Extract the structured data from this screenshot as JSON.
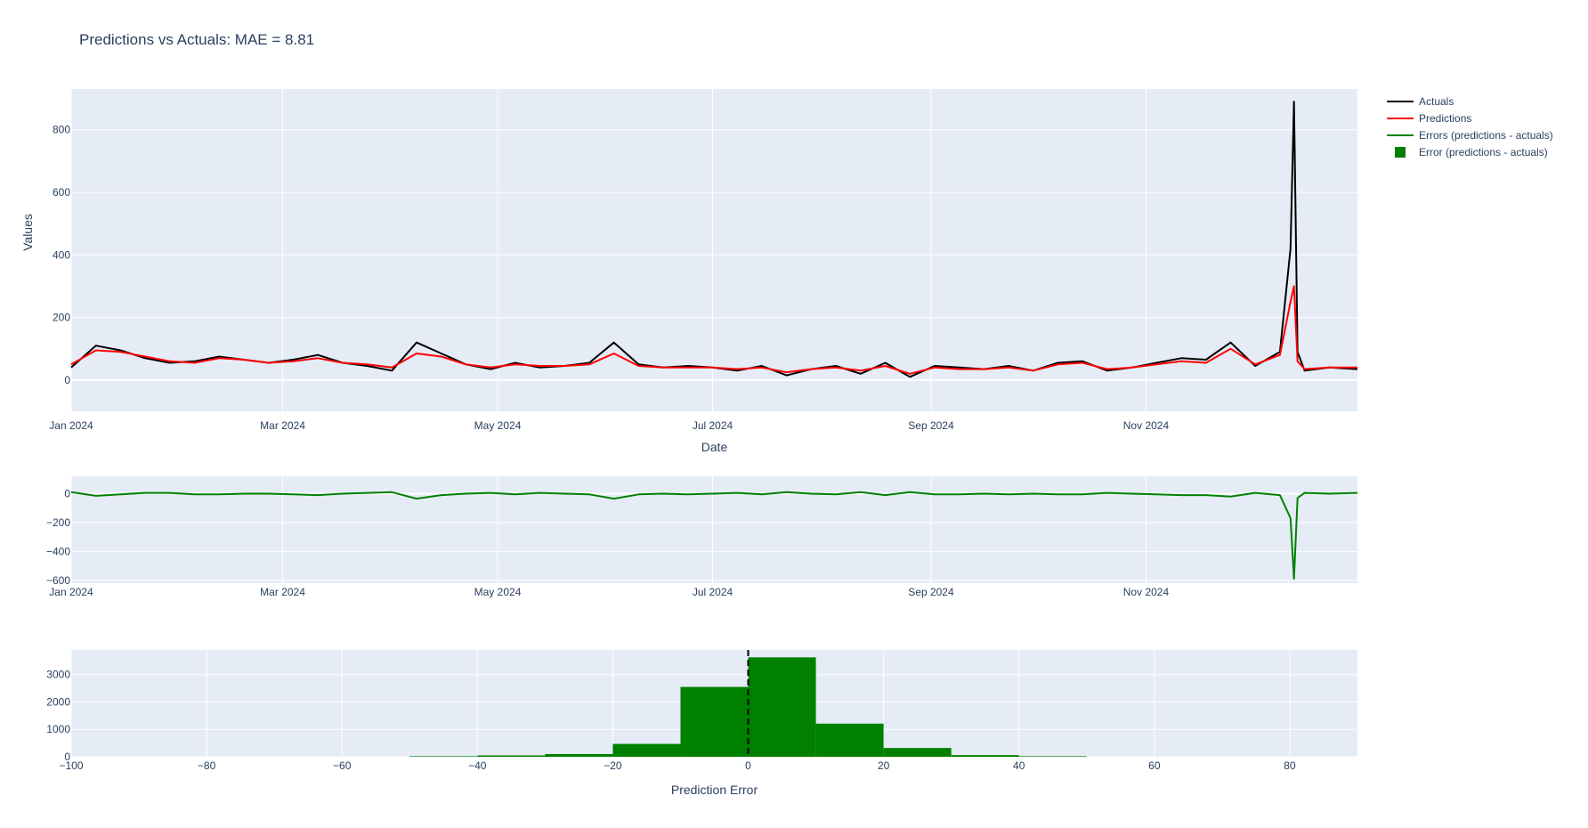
{
  "title": "Predictions vs Actuals: MAE = 8.81",
  "colors": {
    "plot_bg": "#e5ecf6",
    "grid": "#ffffff",
    "actuals": "#000000",
    "predictions": "#ff0000",
    "errors": "#008000",
    "histogram": "#008000",
    "text": "#2a3f5f"
  },
  "legend": {
    "placement": "right",
    "items": [
      {
        "label": "Actuals",
        "symbol": "line",
        "color": "#000000"
      },
      {
        "label": "Predictions",
        "symbol": "line",
        "color": "#ff0000"
      },
      {
        "label": "Errors (predictions - actuals)",
        "symbol": "line",
        "color": "#008000"
      },
      {
        "label": "Error (predictions - actuals)",
        "symbol": "square",
        "color": "#008000"
      }
    ]
  },
  "chart_data": [
    {
      "type": "line",
      "xlabel": "Date",
      "ylabel": "Values",
      "xlim": [
        "2024-01-01",
        "2024-12-31"
      ],
      "ylim": [
        -100,
        930
      ],
      "yticks": [
        0,
        200,
        400,
        600,
        800
      ],
      "xticks": [
        {
          "date": "2024-01-01",
          "label": "Jan 2024"
        },
        {
          "date": "2024-03-01",
          "label": "Mar 2024"
        },
        {
          "date": "2024-05-01",
          "label": "May 2024"
        },
        {
          "date": "2024-07-01",
          "label": "Jul 2024"
        },
        {
          "date": "2024-09-01",
          "label": "Sep 2024"
        },
        {
          "date": "2024-11-01",
          "label": "Nov 2024"
        }
      ],
      "grid": true,
      "series": [
        {
          "name": "Actuals",
          "color": "#000000",
          "x": [
            "2024-01-01",
            "2024-01-08",
            "2024-01-15",
            "2024-01-22",
            "2024-01-29",
            "2024-02-05",
            "2024-02-12",
            "2024-02-19",
            "2024-02-26",
            "2024-03-04",
            "2024-03-11",
            "2024-03-18",
            "2024-03-25",
            "2024-04-01",
            "2024-04-08",
            "2024-04-15",
            "2024-04-22",
            "2024-04-29",
            "2024-05-06",
            "2024-05-13",
            "2024-05-20",
            "2024-05-27",
            "2024-06-03",
            "2024-06-10",
            "2024-06-17",
            "2024-06-24",
            "2024-07-01",
            "2024-07-08",
            "2024-07-15",
            "2024-07-22",
            "2024-07-29",
            "2024-08-05",
            "2024-08-12",
            "2024-08-19",
            "2024-08-26",
            "2024-09-02",
            "2024-09-09",
            "2024-09-16",
            "2024-09-23",
            "2024-09-30",
            "2024-10-07",
            "2024-10-14",
            "2024-10-21",
            "2024-10-28",
            "2024-11-04",
            "2024-11-11",
            "2024-11-18",
            "2024-11-25",
            "2024-12-02",
            "2024-12-09",
            "2024-12-12",
            "2024-12-13",
            "2024-12-14",
            "2024-12-16",
            "2024-12-23",
            "2024-12-31"
          ],
          "y": [
            40,
            110,
            95,
            70,
            55,
            60,
            75,
            65,
            55,
            65,
            80,
            55,
            45,
            30,
            120,
            85,
            50,
            35,
            55,
            40,
            45,
            55,
            120,
            50,
            40,
            45,
            40,
            30,
            45,
            15,
            35,
            45,
            20,
            55,
            10,
            45,
            40,
            35,
            45,
            30,
            55,
            60,
            30,
            40,
            55,
            70,
            65,
            120,
            45,
            90,
            420,
            890,
            90,
            30,
            40,
            35
          ]
        },
        {
          "name": "Predictions",
          "color": "#ff0000",
          "x": [
            "2024-01-01",
            "2024-01-08",
            "2024-01-15",
            "2024-01-22",
            "2024-01-29",
            "2024-02-05",
            "2024-02-12",
            "2024-02-19",
            "2024-02-26",
            "2024-03-04",
            "2024-03-11",
            "2024-03-18",
            "2024-03-25",
            "2024-04-01",
            "2024-04-08",
            "2024-04-15",
            "2024-04-22",
            "2024-04-29",
            "2024-05-06",
            "2024-05-13",
            "2024-05-20",
            "2024-05-27",
            "2024-06-03",
            "2024-06-10",
            "2024-06-17",
            "2024-06-24",
            "2024-07-01",
            "2024-07-08",
            "2024-07-15",
            "2024-07-22",
            "2024-07-29",
            "2024-08-05",
            "2024-08-12",
            "2024-08-19",
            "2024-08-26",
            "2024-09-02",
            "2024-09-09",
            "2024-09-16",
            "2024-09-23",
            "2024-09-30",
            "2024-10-07",
            "2024-10-14",
            "2024-10-21",
            "2024-10-28",
            "2024-11-04",
            "2024-11-11",
            "2024-11-18",
            "2024-11-25",
            "2024-12-02",
            "2024-12-09",
            "2024-12-12",
            "2024-12-13",
            "2024-12-14",
            "2024-12-16",
            "2024-12-23",
            "2024-12-31"
          ],
          "y": [
            50,
            95,
            90,
            75,
            60,
            55,
            70,
            65,
            55,
            60,
            70,
            55,
            50,
            40,
            85,
            75,
            50,
            40,
            50,
            45,
            45,
            50,
            85,
            45,
            40,
            40,
            40,
            35,
            40,
            25,
            35,
            40,
            30,
            45,
            20,
            40,
            35,
            35,
            40,
            30,
            50,
            55,
            35,
            40,
            50,
            60,
            55,
            100,
            50,
            80,
            250,
            300,
            60,
            35,
            40,
            40
          ]
        },
        {
          "name": "Errors (predictions - actuals)",
          "color": "#008000",
          "x": [
            "2024-01-01",
            "2024-01-08",
            "2024-01-15",
            "2024-01-22",
            "2024-01-29",
            "2024-02-05",
            "2024-02-12",
            "2024-02-19",
            "2024-02-26",
            "2024-03-04",
            "2024-03-11",
            "2024-03-18",
            "2024-03-25",
            "2024-04-01",
            "2024-04-08",
            "2024-04-15",
            "2024-04-22",
            "2024-04-29",
            "2024-05-06",
            "2024-05-13",
            "2024-05-20",
            "2024-05-27",
            "2024-06-03",
            "2024-06-10",
            "2024-06-17",
            "2024-06-24",
            "2024-07-01",
            "2024-07-08",
            "2024-07-15",
            "2024-07-22",
            "2024-07-29",
            "2024-08-05",
            "2024-08-12",
            "2024-08-19",
            "2024-08-26",
            "2024-09-02",
            "2024-09-09",
            "2024-09-16",
            "2024-09-23",
            "2024-09-30",
            "2024-10-07",
            "2024-10-14",
            "2024-10-21",
            "2024-10-28",
            "2024-11-04",
            "2024-11-11",
            "2024-11-18",
            "2024-11-25",
            "2024-12-02",
            "2024-12-09",
            "2024-12-12",
            "2024-12-13",
            "2024-12-14",
            "2024-12-16",
            "2024-12-23",
            "2024-12-31"
          ],
          "y": [
            10,
            -15,
            -5,
            5,
            5,
            -5,
            -5,
            0,
            0,
            -5,
            -10,
            0,
            5,
            10,
            -35,
            -10,
            0,
            5,
            -5,
            5,
            0,
            -5,
            -35,
            -5,
            0,
            -5,
            0,
            5,
            -5,
            10,
            0,
            -5,
            10,
            -10,
            10,
            -5,
            -5,
            0,
            -5,
            0,
            -5,
            -5,
            5,
            0,
            -5,
            -10,
            -10,
            -20,
            5,
            -10,
            -170,
            -590,
            -30,
            5,
            0,
            5
          ]
        }
      ],
      "yrange_errors": [
        -620,
        120
      ],
      "yticks_errors": [
        -600,
        -400,
        -200,
        0
      ]
    },
    {
      "type": "bar",
      "xlabel": "Prediction Error",
      "ylabel": "",
      "xlim": [
        -100,
        90
      ],
      "ylim": [
        0,
        3900
      ],
      "xticks": [
        -100,
        -80,
        -60,
        -40,
        -20,
        0,
        20,
        40,
        60,
        80
      ],
      "yticks": [
        0,
        1000,
        2000,
        3000
      ],
      "grid": true,
      "series": [
        {
          "name": "Error (predictions - actuals)",
          "color": "#008000",
          "bins": [
            {
              "x0": -50,
              "x1": -40,
              "value": 20
            },
            {
              "x0": -40,
              "x1": -30,
              "value": 50
            },
            {
              "x0": -30,
              "x1": -20,
              "value": 100
            },
            {
              "x0": -20,
              "x1": -10,
              "value": 470
            },
            {
              "x0": -10,
              "x1": 0,
              "value": 2550
            },
            {
              "x0": 0,
              "x1": 10,
              "value": 3630
            },
            {
              "x0": 10,
              "x1": 20,
              "value": 1210
            },
            {
              "x0": 20,
              "x1": 30,
              "value": 320
            },
            {
              "x0": 30,
              "x1": 40,
              "value": 60
            },
            {
              "x0": 40,
              "x1": 50,
              "value": 20
            }
          ]
        }
      ],
      "vline": 0
    }
  ]
}
